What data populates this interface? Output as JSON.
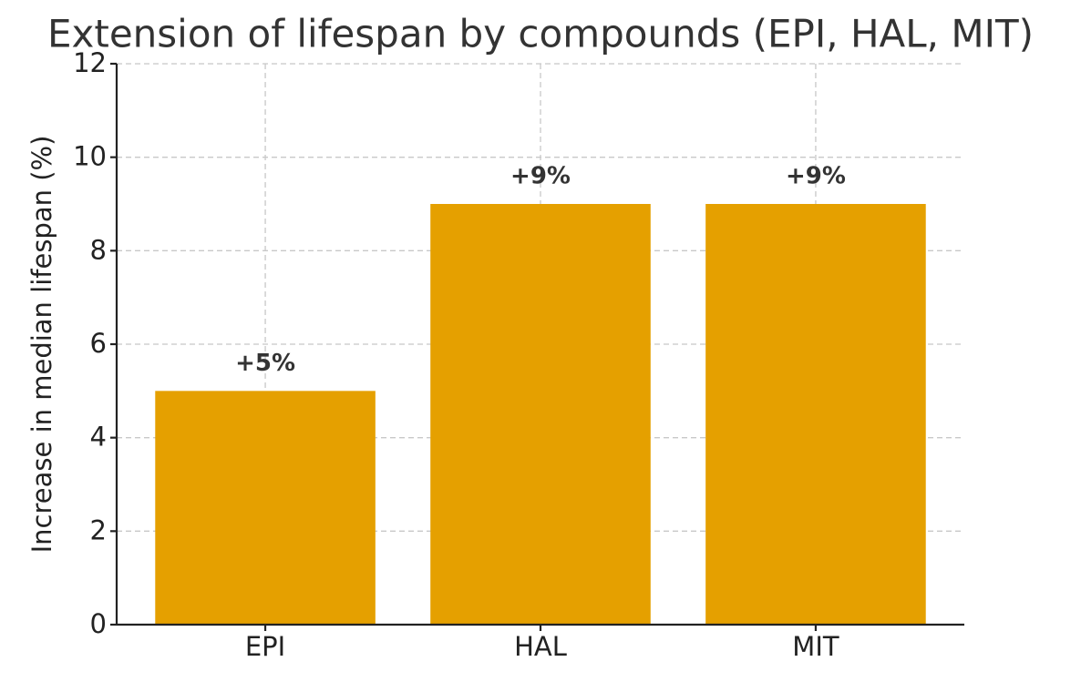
{
  "chart_data": {
    "type": "bar",
    "title": "Extension of lifespan by compounds (EPI, HAL, MIT)",
    "ylabel": "Increase in median lifespan (%)",
    "categories": [
      "EPI",
      "HAL",
      "MIT"
    ],
    "values": [
      5,
      9,
      9
    ],
    "value_labels": [
      "+5%",
      "+9%",
      "+9%"
    ],
    "color": "#e5a000",
    "ylim": [
      0,
      12
    ],
    "yticks": [
      0,
      2,
      4,
      6,
      8,
      10,
      12
    ],
    "grid": true
  }
}
